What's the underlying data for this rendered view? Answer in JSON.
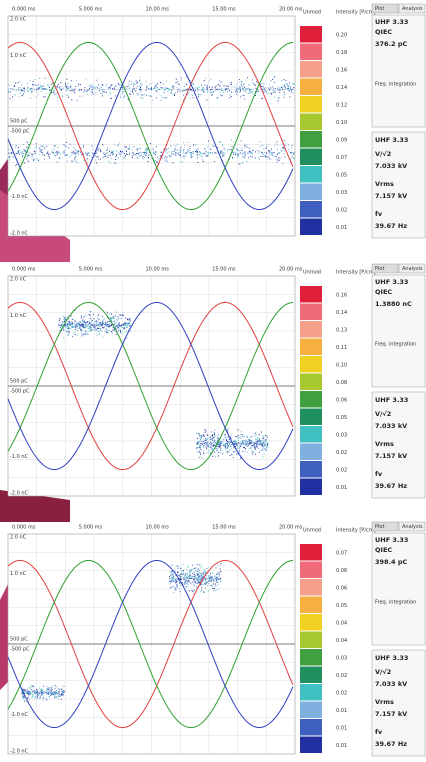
{
  "panels": [
    {
      "x_ticks": [
        "0.000 ms",
        "5.000 ms",
        "10.00 ms",
        "15.00 ms",
        "20.00 ms"
      ],
      "y_labels": [
        "2.0 nC",
        "1.0 nC",
        "500 pC",
        "-500 pC",
        "-1.0 nC",
        "-2.0 nC"
      ],
      "scale_title": "Unmod",
      "intensity_title": "Intensity [P/cm]",
      "scale_labels": [
        "0.20",
        "0.18",
        "0.16",
        "0.14",
        "0.12",
        "0.10",
        "0.09",
        "0.07",
        "0.05",
        "0.03",
        "0.02",
        "0.01"
      ],
      "sidebar": {
        "tabs": [
          "Plot",
          "Analysis"
        ],
        "channel": "UHF 3.33",
        "charge_label": "QIEC",
        "charge_value": "376.2 pC",
        "note": "Freq. integration",
        "channel2": "UHF 3.33",
        "v_label": "V/√2",
        "v_value": "7.033 kV",
        "vrms_label": "Vrms",
        "vrms_value": "7.157 kV",
        "f_label": "fv",
        "f_value": "39.67 Hz"
      }
    },
    {
      "x_ticks": [
        "0.000 ms",
        "5.000 ms",
        "10.00 ms",
        "15.00 ms",
        "20.00 ms"
      ],
      "y_labels": [
        "2.0 nC",
        "1.0 nC",
        "500 pC",
        "-500 pC",
        "-1.0 nC",
        "-2.0 nC"
      ],
      "scale_title": "Unmod",
      "intensity_title": "Intensity [P/cm]",
      "scale_labels": [
        "0.16",
        "0.14",
        "0.13",
        "0.11",
        "0.10",
        "0.08",
        "0.06",
        "0.05",
        "0.03",
        "0.02",
        "0.02",
        "0.01"
      ],
      "sidebar": {
        "tabs": [
          "Plot",
          "Analysis"
        ],
        "channel": "UHF 3.33",
        "charge_label": "QIEC",
        "charge_value": "1.3880 nC",
        "note": "Freq. integration",
        "channel2": "UHF 3.33",
        "v_label": "V/√2",
        "v_value": "7.033 kV",
        "vrms_label": "Vrms",
        "vrms_value": "7.157 kV",
        "f_label": "fv",
        "f_value": "39.67 Hz"
      }
    },
    {
      "x_ticks": [
        "0.000 ms",
        "5.000 ms",
        "10.00 ms",
        "15.00 ms",
        "20.00 ms"
      ],
      "y_labels": [
        "2.0 nC",
        "1.0 nC",
        "500 pC",
        "-500 pC",
        "-1.0 nC",
        "-2.0 nC"
      ],
      "scale_title": "Unmod",
      "intensity_title": "Intensity [P/cm]",
      "scale_labels": [
        "0.07",
        "0.06",
        "0.06",
        "0.05",
        "0.04",
        "0.04",
        "0.03",
        "0.02",
        "0.02",
        "0.01",
        "0.01",
        "0.01"
      ],
      "sidebar": {
        "tabs": [
          "Plot",
          "Analysis"
        ],
        "channel": "UHF 3.33",
        "charge_label": "QIEC",
        "charge_value": "398.4 pC",
        "note": "Freq. integration",
        "channel2": "UHF 3.33",
        "v_label": "V/√2",
        "v_value": "7.033 kV",
        "vrms_label": "Vrms",
        "vrms_value": "7.157 kV",
        "f_label": "fv",
        "f_value": "39.67 Hz"
      }
    }
  ]
}
